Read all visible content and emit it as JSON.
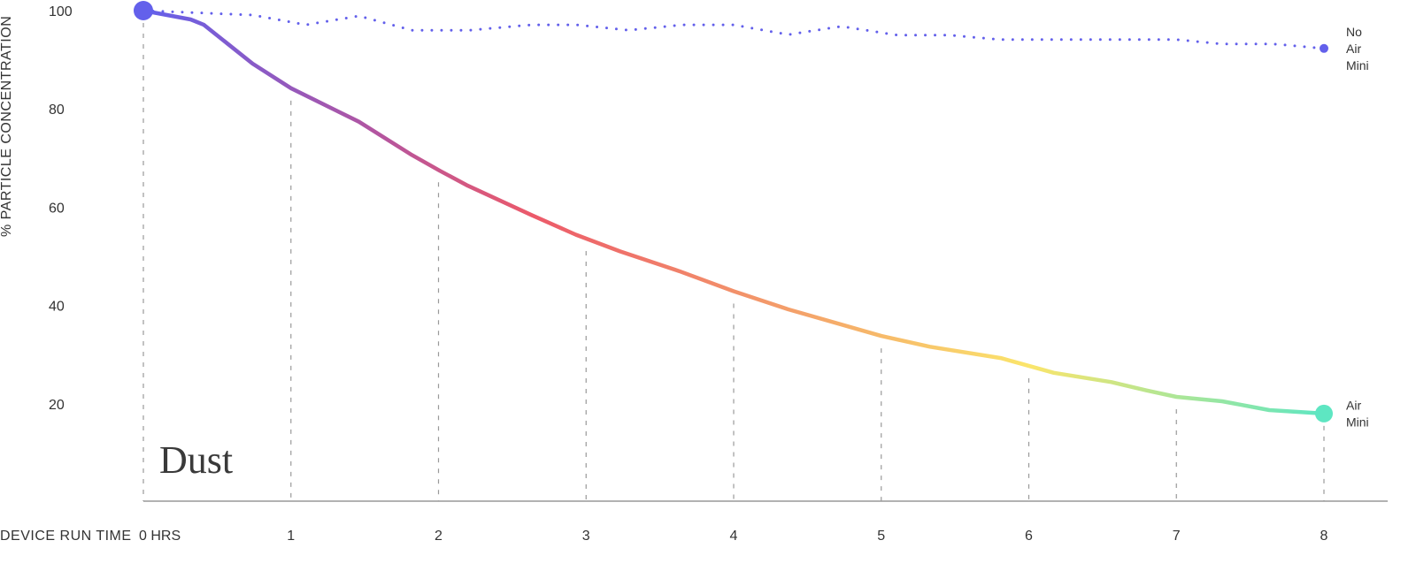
{
  "chart_data": {
    "type": "line",
    "title": "Dust",
    "xlabel": "DEVICE RUN TIME",
    "ylabel": "% PARTICLE CONCENTRATION",
    "xlim": [
      0,
      8
    ],
    "ylim": [
      0,
      100
    ],
    "x_ticks": [
      "0 HRS",
      "1",
      "2",
      "3",
      "4",
      "5",
      "6",
      "7",
      "8"
    ],
    "y_ticks": [
      "20",
      "40",
      "60",
      "80",
      "100"
    ],
    "grid": "vertical dashed at each hour",
    "colors": {
      "purple": "#6360eb",
      "magenta": "#b4559f",
      "red": "#ec5a6a",
      "orange": "#f4a06a",
      "yellow": "#fbe56b",
      "green": "#5ee6c2",
      "axis": "#999999"
    },
    "series": [
      {
        "name": "Air Mini",
        "label_lines": [
          "Air",
          "Mini"
        ],
        "style": "solid-gradient",
        "x": [
          0,
          0.32,
          0.41,
          0.74,
          1,
          1.46,
          1.81,
          2.01,
          2.19,
          2.63,
          2.93,
          3.23,
          3.63,
          4.0,
          4.37,
          5.0,
          5.33,
          5.81,
          6.17,
          6.56,
          6.8,
          7.0,
          7.31,
          7.63,
          8
        ],
        "y": [
          100,
          98.2,
          97.1,
          89.2,
          84.2,
          77.4,
          70.8,
          67.4,
          64.5,
          58.4,
          54.4,
          51.0,
          47.0,
          42.9,
          39.2,
          33.8,
          31.6,
          29.3,
          26.3,
          24.4,
          22.7,
          21.4,
          20.5,
          18.7,
          18.0
        ]
      },
      {
        "name": "No Air Mini",
        "label_lines": [
          "No",
          "Air",
          "Mini"
        ],
        "style": "dotted",
        "x": [
          0,
          0.74,
          1.1,
          1.46,
          1.82,
          2.21,
          2.63,
          2.93,
          3.29,
          3.65,
          4.0,
          4.37,
          4.73,
          5.11,
          5.47,
          5.8,
          7.0,
          7.31,
          7.66,
          8
        ],
        "y": [
          100,
          99.1,
          97.1,
          98.9,
          96.0,
          96.0,
          97.1,
          97.1,
          96.0,
          97.1,
          97.1,
          95.1,
          96.8,
          95.0,
          95.0,
          94.1,
          94.1,
          93.2,
          93.2,
          92.3
        ]
      }
    ]
  }
}
